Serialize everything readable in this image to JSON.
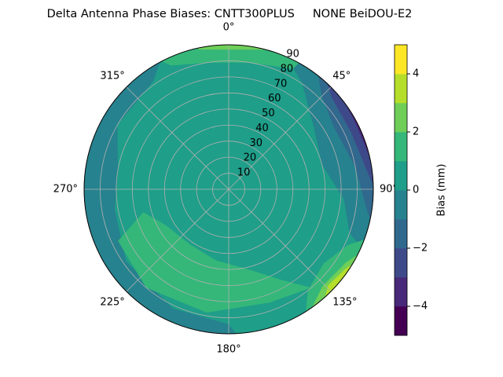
{
  "chart_data": {
    "type": "polar-contour",
    "title": "Delta Antenna Phase Biases: CNTT300PLUS     NONE BeiDOU-E2",
    "theta_direction": "clockwise",
    "theta_zero": "N",
    "thetaticks": [
      {
        "value": 0,
        "label": "0°"
      },
      {
        "value": 45,
        "label": "45°"
      },
      {
        "value": 90,
        "label": "90°"
      },
      {
        "value": 135,
        "label": "135°"
      },
      {
        "value": 180,
        "label": "180°"
      },
      {
        "value": 225,
        "label": "225°"
      },
      {
        "value": 270,
        "label": "270°"
      },
      {
        "value": 315,
        "label": "315°"
      }
    ],
    "rlim": [
      0,
      90
    ],
    "rticks": [
      10,
      20,
      30,
      40,
      50,
      60,
      70,
      80,
      90
    ],
    "grid": true,
    "levels": [
      -5,
      -4,
      -3,
      -2,
      -1,
      0,
      1,
      2,
      3,
      4,
      5
    ],
    "colors": [
      "#440154",
      "#482878",
      "#3e4989",
      "#31688e",
      "#26828e",
      "#1f9e89",
      "#35b779",
      "#6ece58",
      "#b5de2b",
      "#fde725"
    ],
    "colorbar_label": "Bias (mm)",
    "colorbar_ticks": [
      {
        "value": -4,
        "label": "−4"
      },
      {
        "value": -2,
        "label": "−2"
      },
      0,
      2,
      4
    ],
    "regions": [
      {
        "level": 0,
        "azimuth": [
          0,
          90,
          180,
          270
        ],
        "zenith": [
          95,
          95,
          95,
          95
        ]
      },
      {
        "level": -1,
        "azimuth": [
          175,
          200,
          230,
          260,
          290,
          320,
          335,
          325,
          300,
          280,
          260,
          235,
          205,
          180
        ],
        "zenith": [
          95,
          95,
          95,
          95,
          95,
          95,
          95,
          82,
          80,
          70,
          72,
          78,
          82,
          84
        ]
      },
      {
        "level": -1,
        "azimuth": [
          20,
          40,
          60,
          80,
          100,
          115,
          110,
          95,
          75,
          55,
          35
        ],
        "zenith": [
          95,
          95,
          95,
          95,
          95,
          95,
          80,
          72,
          60,
          65,
          80
        ]
      },
      {
        "level": -2,
        "azimuth": [
          35,
          50,
          70,
          90,
          105,
          100,
          80,
          60,
          45
        ],
        "zenith": [
          95,
          95,
          95,
          95,
          95,
          88,
          80,
          76,
          82
        ]
      },
      {
        "level": -3,
        "azimuth": [
          38,
          55,
          75,
          95,
          85,
          65,
          48
        ],
        "zenith": [
          95,
          95,
          95,
          95,
          88,
          84,
          86
        ]
      },
      {
        "level": -4,
        "azimuth": [
          42,
          60,
          80,
          92,
          80,
          62
        ],
        "zenith": [
          95,
          95,
          95,
          95,
          91,
          89
        ]
      },
      {
        "level": 1,
        "azimuth": [
          330,
          350,
          10,
          30,
          28,
          10,
          350,
          335
        ],
        "zenith": [
          95,
          95,
          95,
          95,
          85,
          80,
          80,
          85
        ]
      },
      {
        "level": 2,
        "azimuth": [
          345,
          0,
          15,
          25,
          15,
          0,
          348
        ],
        "zenith": [
          95,
          95,
          95,
          95,
          90,
          87,
          89
        ]
      },
      {
        "level": 1,
        "azimuth": [
          140,
          160,
          190,
          220,
          245,
          255,
          240,
          215,
          190,
          165,
          150
        ],
        "zenith": [
          80,
          75,
          78,
          80,
          76,
          55,
          45,
          42,
          45,
          52,
          65
        ]
      },
      {
        "level": 1,
        "azimuth": [
          108,
          120,
          135,
          150,
          142,
          128,
          115
        ],
        "zenith": [
          95,
          95,
          95,
          95,
          80,
          75,
          82
        ]
      },
      {
        "level": 2,
        "azimuth": [
          112,
          125,
          138,
          148,
          136,
          122
        ],
        "zenith": [
          95,
          95,
          95,
          93,
          84,
          86
        ]
      },
      {
        "level": 3,
        "azimuth": [
          116,
          128,
          140,
          134,
          124
        ],
        "zenith": [
          95,
          95,
          92,
          86,
          88
        ]
      }
    ]
  }
}
